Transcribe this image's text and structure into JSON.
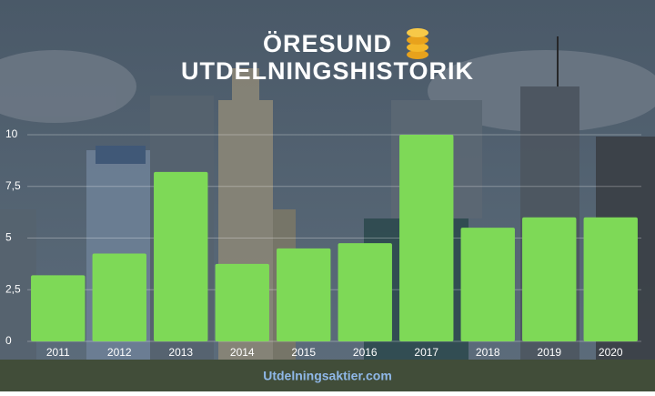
{
  "chart_data": {
    "type": "bar",
    "title": [
      "ÖRESUND",
      "UTDELNINGSHISTORIK"
    ],
    "categories": [
      "2011",
      "2012",
      "2013",
      "2014",
      "2015",
      "2016",
      "2017",
      "2018",
      "2019",
      "2020"
    ],
    "values": [
      3.2,
      4.25,
      8.2,
      3.75,
      4.5,
      4.75,
      10,
      5.5,
      6,
      6
    ],
    "color": "#7ed957",
    "ylim": [
      0,
      10
    ],
    "yticks": [
      0,
      {
        "value": 2.5,
        "label": "2,5"
      },
      5,
      {
        "value": 7.5,
        "label": "7,5"
      },
      10
    ],
    "grid": true,
    "source": "Utdelningsaktier.com"
  }
}
